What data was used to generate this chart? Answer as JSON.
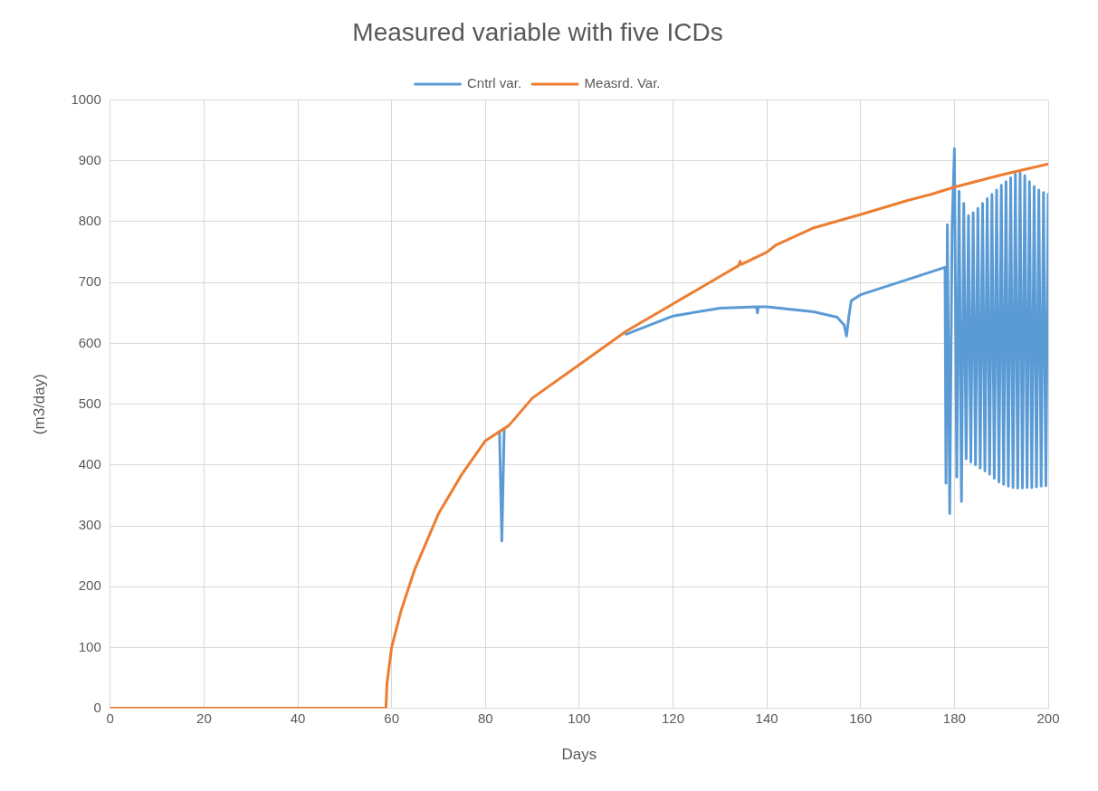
{
  "chart_data": {
    "type": "line",
    "title": "Measured variable with five ICDs",
    "xlabel": "Days",
    "ylabel": "(m3/day)",
    "xlim": [
      0,
      200
    ],
    "xticks": [
      0,
      20,
      40,
      60,
      80,
      100,
      120,
      140,
      160,
      180,
      200
    ],
    "ylim": [
      0,
      1000
    ],
    "yticks": [
      0,
      100,
      200,
      300,
      400,
      500,
      600,
      700,
      800,
      900,
      1000
    ],
    "grid": true,
    "legend": "top",
    "marker": "none",
    "line_style": "solid",
    "series": [
      {
        "name": "Cntrl var.",
        "color": "#5b9bd5",
        "x": [
          83,
          83.5,
          84,
          97,
          110,
          120,
          130,
          137.8,
          138,
          138.2,
          140,
          150,
          155,
          156.5,
          157,
          157.5,
          158,
          160,
          170,
          178,
          178.2,
          178.5,
          179,
          179.5,
          180,
          180.5,
          181,
          181.5,
          182,
          182.5,
          183,
          183.5,
          184,
          184.5,
          185,
          185.5,
          186,
          186.5,
          187,
          187.5,
          188,
          188.5,
          189,
          189.5,
          190,
          190.5,
          191,
          191.5,
          192,
          192.5,
          193,
          193.5,
          194,
          194.5,
          195,
          195.5,
          196,
          196.5,
          197,
          197.5,
          198,
          198.5,
          199,
          199.5,
          200
        ],
        "values": [
          455,
          275,
          458,
          null,
          615,
          645,
          658,
          660,
          650,
          660,
          660,
          652,
          643,
          630,
          612,
          645,
          670,
          680,
          705,
          725,
          370,
          795,
          320,
          790,
          920,
          380,
          850,
          340,
          830,
          410,
          810,
          405,
          815,
          400,
          822,
          395,
          830,
          390,
          838,
          385,
          845,
          378,
          852,
          372,
          860,
          368,
          866,
          365,
          872,
          363,
          878,
          362,
          880,
          362,
          876,
          363,
          866,
          363,
          858,
          364,
          852,
          365,
          848,
          366,
          845
        ]
      },
      {
        "name": "Measrd. Var.",
        "color": "#ed7d31",
        "x": [
          0,
          58.8,
          59,
          60,
          62,
          65,
          70,
          75,
          80,
          85,
          90,
          100,
          110,
          120,
          130,
          134,
          134.3,
          134.6,
          140,
          142,
          150,
          160,
          170,
          175,
          180,
          190,
          195,
          200
        ],
        "values": [
          0,
          0,
          40,
          100,
          160,
          230,
          320,
          385,
          440,
          465,
          510,
          565,
          620,
          665,
          710,
          728,
          735,
          730,
          750,
          762,
          790,
          812,
          835,
          845,
          857,
          877,
          886,
          895
        ]
      }
    ]
  }
}
